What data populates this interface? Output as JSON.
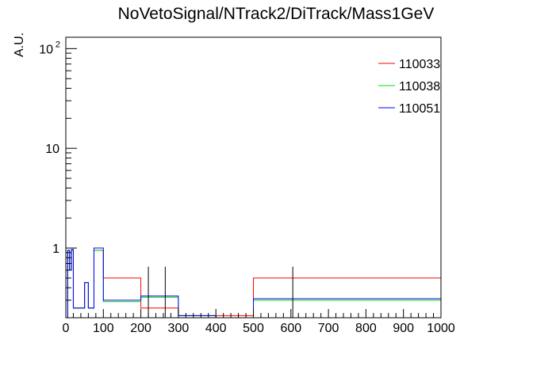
{
  "chart_data": {
    "type": "line",
    "title": "NoVetoSignal/NTrack2/DiTrack/Mass1GeV",
    "xlabel": "",
    "ylabel": "A.U.",
    "xlim": [
      0,
      1000
    ],
    "ylim": [
      0.2,
      130
    ],
    "yscale": "log",
    "x_ticks": [
      "0",
      "100",
      "200",
      "300",
      "400",
      "500",
      "600",
      "700",
      "800",
      "900",
      "1000"
    ],
    "y_ticks": [
      {
        "value": 1,
        "label": "1"
      },
      {
        "value": 10,
        "label": "10"
      },
      {
        "value": 100,
        "label": "10",
        "exponent": "2"
      }
    ],
    "legend_position": "top-right",
    "series": [
      {
        "name": "110033",
        "color": "#ff0000",
        "bins": [
          {
            "x0": 0,
            "x1": 5,
            "y": 0.2
          },
          {
            "x0": 5,
            "x1": 10,
            "y": 0.95
          },
          {
            "x0": 10,
            "x1": 15,
            "y": 0.6
          },
          {
            "x0": 15,
            "x1": 20,
            "y": 0.95
          },
          {
            "x0": 20,
            "x1": 50,
            "y": 0.25
          },
          {
            "x0": 50,
            "x1": 60,
            "y": 0.45
          },
          {
            "x0": 60,
            "x1": 75,
            "y": 0.25
          },
          {
            "x0": 75,
            "x1": 100,
            "y": 0.95
          },
          {
            "x0": 100,
            "x1": 200,
            "y": 0.5
          },
          {
            "x0": 200,
            "x1": 300,
            "y": 0.25
          },
          {
            "x0": 300,
            "x1": 500,
            "y": 0.21
          },
          {
            "x0": 500,
            "x1": 1000,
            "y": 0.5
          }
        ]
      },
      {
        "name": "110038",
        "color": "#00dd00",
        "bins": [
          {
            "x0": 0,
            "x1": 5,
            "y": 0.2
          },
          {
            "x0": 5,
            "x1": 10,
            "y": 0.95
          },
          {
            "x0": 10,
            "x1": 15,
            "y": 0.6
          },
          {
            "x0": 15,
            "x1": 20,
            "y": 0.95
          },
          {
            "x0": 20,
            "x1": 50,
            "y": 0.25
          },
          {
            "x0": 50,
            "x1": 60,
            "y": 0.45
          },
          {
            "x0": 60,
            "x1": 75,
            "y": 0.25
          },
          {
            "x0": 75,
            "x1": 100,
            "y": 0.95
          },
          {
            "x0": 100,
            "x1": 200,
            "y": 0.29
          },
          {
            "x0": 200,
            "x1": 300,
            "y": 0.32
          },
          {
            "x0": 300,
            "x1": 400,
            "y": 0.21
          },
          {
            "x0": 400,
            "x1": 500,
            "y": 0.2
          },
          {
            "x0": 500,
            "x1": 1000,
            "y": 0.3
          }
        ]
      },
      {
        "name": "110051",
        "color": "#0000ff",
        "bins": [
          {
            "x0": 0,
            "x1": 5,
            "y": 0.2
          },
          {
            "x0": 5,
            "x1": 10,
            "y": 0.95
          },
          {
            "x0": 10,
            "x1": 15,
            "y": 0.6
          },
          {
            "x0": 15,
            "x1": 20,
            "y": 0.97
          },
          {
            "x0": 20,
            "x1": 50,
            "y": 0.25
          },
          {
            "x0": 50,
            "x1": 60,
            "y": 0.45
          },
          {
            "x0": 60,
            "x1": 75,
            "y": 0.25
          },
          {
            "x0": 75,
            "x1": 100,
            "y": 1.0
          },
          {
            "x0": 100,
            "x1": 200,
            "y": 0.3
          },
          {
            "x0": 200,
            "x1": 300,
            "y": 0.33
          },
          {
            "x0": 300,
            "x1": 400,
            "y": 0.21
          },
          {
            "x0": 400,
            "x1": 500,
            "y": 0.2
          },
          {
            "x0": 500,
            "x1": 1000,
            "y": 0.31
          }
        ]
      }
    ],
    "error_bars": [
      {
        "x": 220,
        "y_low": 0.2,
        "y_high": 0.65
      },
      {
        "x": 265,
        "y_low": 0.2,
        "y_high": 0.65
      },
      {
        "x": 605,
        "y_low": 0.2,
        "y_high": 0.65
      }
    ]
  }
}
